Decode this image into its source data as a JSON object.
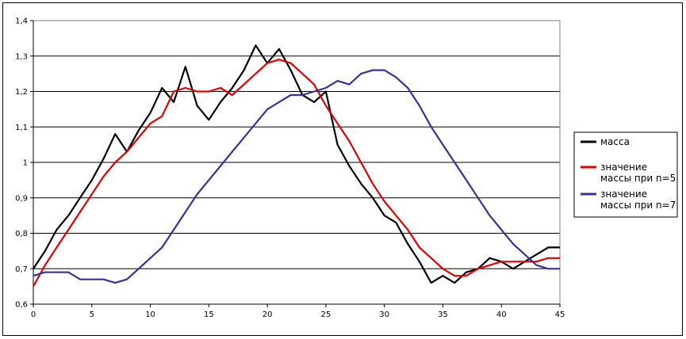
{
  "chart_data": {
    "type": "line",
    "title": "",
    "xlabel": "",
    "ylabel": "",
    "xlim": [
      0,
      45
    ],
    "ylim": [
      0.6,
      1.4
    ],
    "x_ticks": [
      "0",
      "5",
      "10",
      "15",
      "20",
      "25",
      "30",
      "35",
      "40",
      "45"
    ],
    "y_ticks": [
      "0,6",
      "0,7",
      "0,8",
      "0,9",
      "1",
      "1,1",
      "1,2",
      "1,3",
      "1,4"
    ],
    "grid": "horizontal",
    "legend_position": "right",
    "x": [
      0,
      1,
      2,
      3,
      4,
      5,
      6,
      7,
      8,
      9,
      10,
      11,
      12,
      13,
      14,
      15,
      16,
      17,
      18,
      19,
      20,
      21,
      22,
      23,
      24,
      25,
      26,
      27,
      28,
      29,
      30,
      31,
      32,
      33,
      34,
      35,
      36,
      37,
      38,
      39,
      40,
      41,
      42,
      43,
      44,
      45
    ],
    "series": [
      {
        "name": "масса",
        "color": "#000000",
        "values": [
          0.7,
          0.75,
          0.81,
          0.85,
          0.9,
          0.95,
          1.01,
          1.08,
          1.03,
          1.09,
          1.14,
          1.21,
          1.17,
          1.27,
          1.16,
          1.12,
          1.17,
          1.21,
          1.26,
          1.33,
          1.28,
          1.32,
          1.26,
          1.19,
          1.17,
          1.2,
          1.05,
          0.99,
          0.94,
          0.9,
          0.85,
          0.83,
          0.77,
          0.72,
          0.66,
          0.68,
          0.66,
          0.69,
          0.7,
          0.73,
          0.72,
          0.7,
          0.72,
          0.74,
          0.76,
          0.76
        ]
      },
      {
        "name": "значение\nмассы при n=5",
        "color": "#e00000",
        "values": [
          0.65,
          0.71,
          0.76,
          0.81,
          0.86,
          0.91,
          0.96,
          1.0,
          1.03,
          1.07,
          1.11,
          1.13,
          1.2,
          1.21,
          1.2,
          1.2,
          1.21,
          1.19,
          1.22,
          1.25,
          1.28,
          1.29,
          1.28,
          1.25,
          1.22,
          1.16,
          1.11,
          1.06,
          1.0,
          0.94,
          0.89,
          0.85,
          0.81,
          0.76,
          0.73,
          0.7,
          0.68,
          0.68,
          0.7,
          0.71,
          0.72,
          0.72,
          0.72,
          0.72,
          0.73,
          0.73
        ]
      },
      {
        "name": "значение\nмассы при n=7",
        "color": "#33339a",
        "values": [
          0.68,
          0.69,
          0.69,
          0.69,
          0.67,
          0.67,
          0.67,
          0.66,
          0.67,
          0.7,
          0.73,
          0.76,
          0.81,
          0.86,
          0.91,
          0.95,
          0.99,
          1.03,
          1.07,
          1.11,
          1.15,
          1.17,
          1.19,
          1.19,
          1.2,
          1.21,
          1.23,
          1.22,
          1.25,
          1.26,
          1.26,
          1.24,
          1.21,
          1.16,
          1.1,
          1.05,
          1.0,
          0.95,
          0.9,
          0.85,
          0.81,
          0.77,
          0.74,
          0.71,
          0.7,
          0.7
        ]
      }
    ]
  }
}
